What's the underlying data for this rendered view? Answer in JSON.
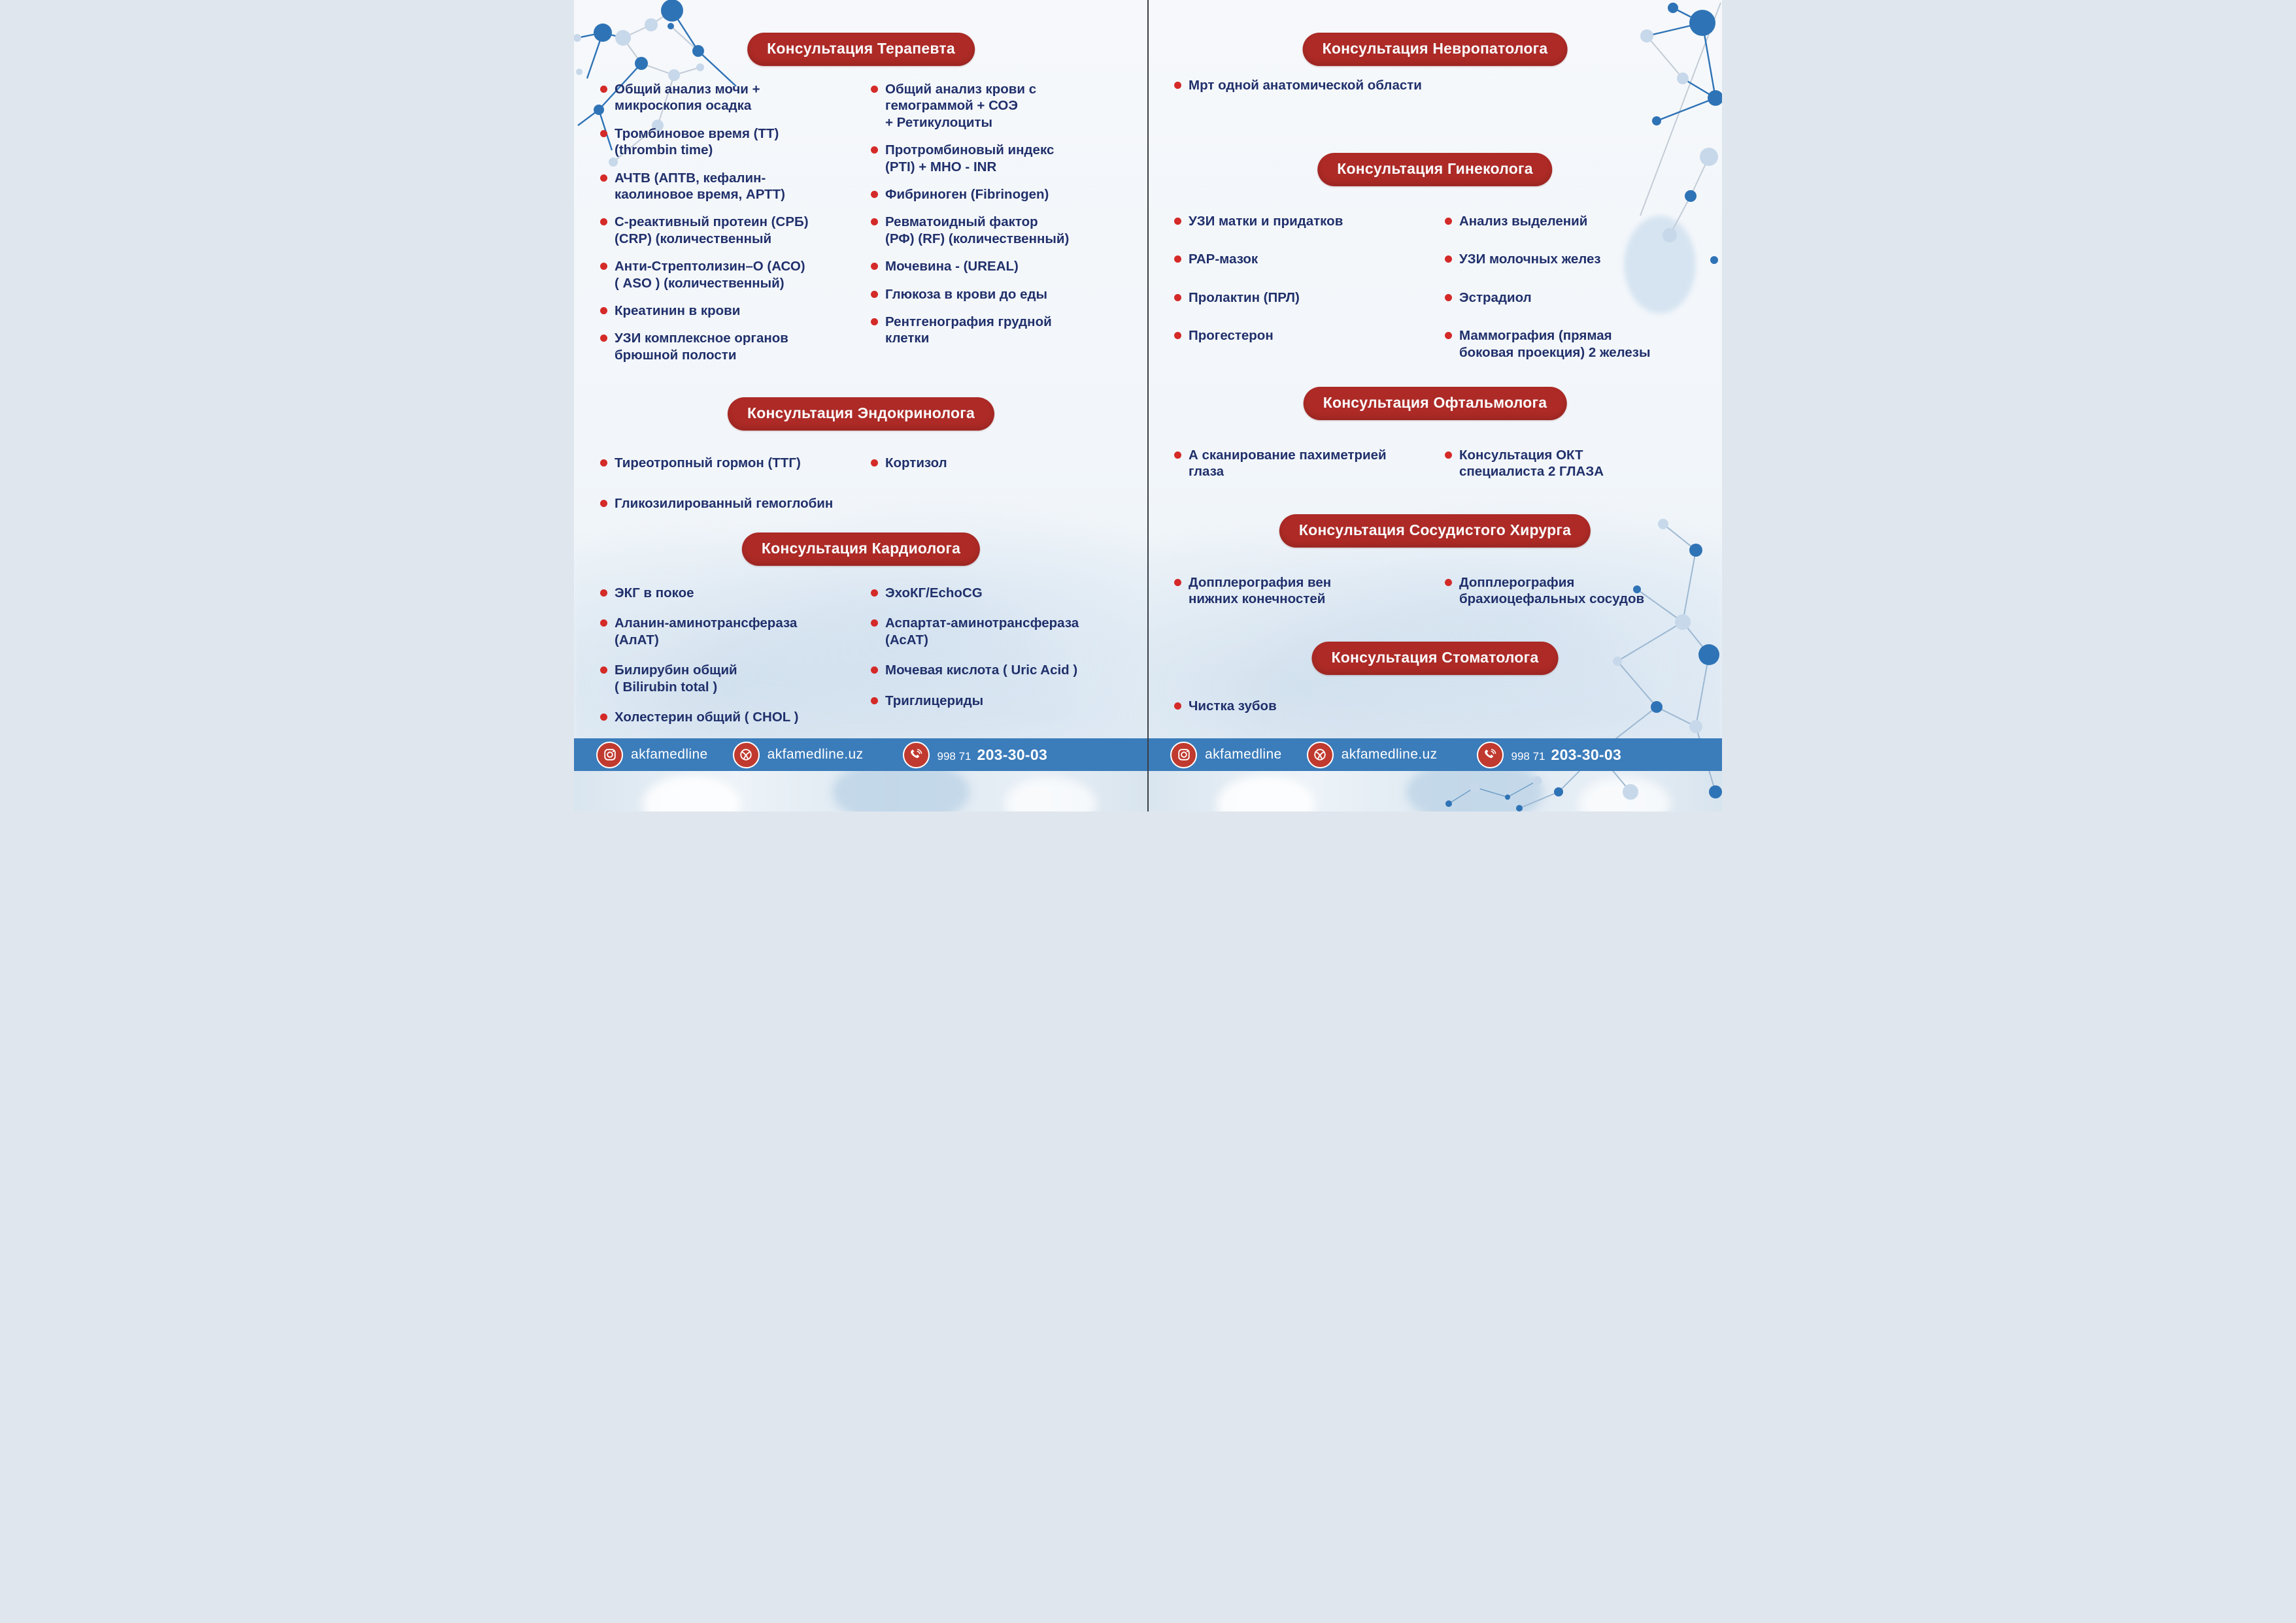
{
  "brand": {
    "header_pill_red": "#ad2a26",
    "bullet_red": "#d42a28",
    "text_navy": "#20306b",
    "footer_blue": "#3b7cba",
    "molecule_blue": "#2e73b6",
    "molecule_light_blue": "#c7d8ea"
  },
  "footer": {
    "instagram_label": "akfamedline",
    "website_label": "akfamedline.uz",
    "phone_prefix": "998 71",
    "phone_number": "203-30-03",
    "icons": [
      "instagram-icon",
      "globe-icon",
      "phone-icon"
    ]
  },
  "left_page": {
    "sections": {
      "therapist": {
        "title": "Консультация Терапевта",
        "col1": [
          "Общий анализ мочи +\nмикроскопия осадка",
          "Тромбиновое время (ТТ)\n(thrombin time)",
          "АЧТВ (АПТВ, кефалин-\nкаолиновое время,  АРТТ)",
          "С-реактивный протеин (СРБ)\n(CRP) (количественный",
          "Анти-Стрептолизин–О (АСО)\n( ASO ) (количественный)",
          "Креатинин в крови",
          "УЗИ комплексное органов\nбрюшной полости"
        ],
        "col2": [
          "Общий анализ крови с\nгемограммой + СОЭ\n+ Ретикулоциты",
          "Протромбиновый индекс\n (PTI) + МНО  - INR",
          "Фибриноген (Fibrinogen)",
          "Ревматоидный фактор\n(РФ) (RF) (количественный)",
          "Мочевина - (UREAL)",
          "Глюкоза в крови до еды",
          "Рентгенография грудной\nклетки"
        ]
      },
      "endocrinologist": {
        "title": "Консультация Эндокринолога",
        "col1": [
          "Тиреотропный гормон (ТТГ)",
          "Гликозилированный гемоглобин"
        ],
        "col2": [
          "Кортизол"
        ]
      },
      "cardiologist": {
        "title": "Консультация Кардиолога",
        "col1": [
          "ЭКГ в покое",
          "Аланин-аминотрансфераза\n(АлАТ)",
          "Билирубин общий\n( Bilirubin total )",
          "Холестерин общий ( CHOL )"
        ],
        "col2": [
          "ЭхоКГ/EchoCG",
          "Аспартат-аминотрансфераза\n(АсАТ)",
          "Мочевая кислота ( Uric Acid )",
          "Триглицериды"
        ]
      }
    }
  },
  "right_page": {
    "sections": {
      "neurologist": {
        "title": "Консультация Невропатолога",
        "col1": [
          "Мрт одной анатомической области"
        ]
      },
      "gynecologist": {
        "title": "Консультация Гинеколога",
        "col1": [
          "УЗИ матки и придатков",
          "РАР-мазок",
          "Пролактин (ПРЛ)",
          "Прогестерон"
        ],
        "col2": [
          "Анализ выделений",
          "УЗИ молочных желез",
          "Эстрадиол",
          "Маммография (прямая\nбоковая проекция) 2 железы"
        ]
      },
      "ophthalmologist": {
        "title": "Консультация Офтальмолога",
        "col1": [
          "А сканирование пахиметрией\nглаза"
        ],
        "col2": [
          "Консультация ОКТ\nспециалиста 2 ГЛАЗА"
        ]
      },
      "vascular_surgeon": {
        "title": "Консультация Сосудистого Хирурга",
        "col1": [
          "Допплерография вен\nнижних конечностей"
        ],
        "col2": [
          "Допплерография\nбрахиоцефальных сосудов"
        ]
      },
      "dentist": {
        "title": "Консультация Стоматолога",
        "col1": [
          "Чистка зубов"
        ]
      }
    }
  }
}
